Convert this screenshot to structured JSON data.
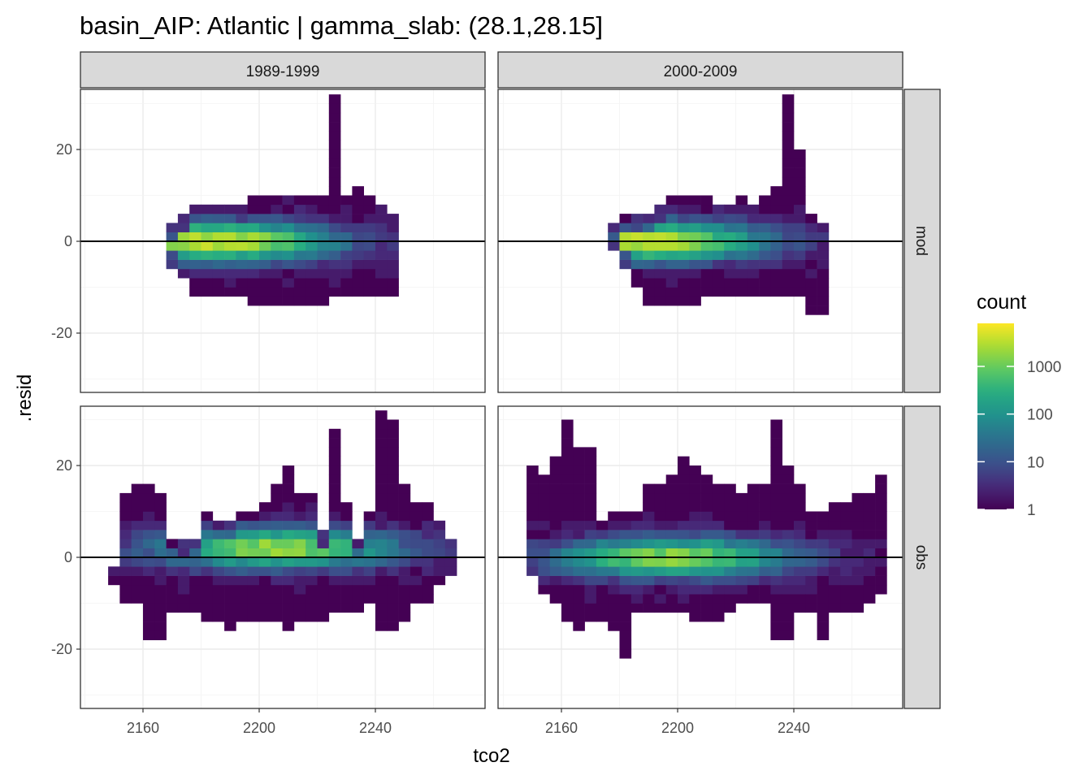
{
  "chart_data": {
    "type": "heatmap",
    "title": "basin_AIP: Atlantic | gamma_slab: (28.1,28.15]",
    "xlabel": "tco2",
    "ylabel": ".resid",
    "x_ticks": [
      2160,
      2200,
      2240
    ],
    "y_ticks": [
      -20,
      0,
      20
    ],
    "xlim": [
      2144,
      2270
    ],
    "ylim": [
      -32,
      32
    ],
    "bin_width_x": 4,
    "bin_height_y": 2,
    "reference_line_y": 0,
    "grid": true,
    "column_facets": [
      "1989-1999",
      "2000-2009"
    ],
    "row_facets": [
      "mod",
      "obs"
    ],
    "legend": {
      "title": "count",
      "position": "right",
      "scale": "log10",
      "ticks": [
        "1",
        "10",
        "100",
        "1000"
      ],
      "tick_values": [
        1,
        10,
        100,
        1000
      ],
      "max_count": 8000,
      "palette": [
        "#440154",
        "#3b528b",
        "#21908c",
        "#5dc863",
        "#fde725"
      ]
    },
    "panels": [
      {
        "column": "1989-1999",
        "row": "mod",
        "core_x_range": [
          2168,
          2248
        ],
        "columns_resid_range": [
          [
            2168,
            -6,
            4
          ],
          [
            2172,
            -8,
            6
          ],
          [
            2176,
            -12,
            8
          ],
          [
            2180,
            -12,
            8
          ],
          [
            2184,
            -12,
            8
          ],
          [
            2188,
            -12,
            8
          ],
          [
            2192,
            -12,
            8
          ],
          [
            2196,
            -14,
            10
          ],
          [
            2200,
            -14,
            10
          ],
          [
            2204,
            -14,
            10
          ],
          [
            2208,
            -14,
            10
          ],
          [
            2212,
            -14,
            10
          ],
          [
            2216,
            -14,
            10
          ],
          [
            2220,
            -14,
            10
          ],
          [
            2224,
            -12,
            32
          ],
          [
            2228,
            -12,
            10
          ],
          [
            2232,
            -12,
            12
          ],
          [
            2236,
            -12,
            10
          ],
          [
            2240,
            -12,
            8
          ],
          [
            2244,
            -12,
            6
          ]
        ],
        "peak": {
          "x": 2184,
          "resid": 0,
          "count": 5000
        }
      },
      {
        "column": "2000-2009",
        "row": "mod",
        "core_x_range": [
          2176,
          2248
        ],
        "columns_resid_range": [
          [
            2176,
            -2,
            4
          ],
          [
            2180,
            -6,
            6
          ],
          [
            2184,
            -10,
            6
          ],
          [
            2188,
            -14,
            6
          ],
          [
            2192,
            -14,
            8
          ],
          [
            2196,
            -14,
            10
          ],
          [
            2200,
            -14,
            10
          ],
          [
            2204,
            -14,
            10
          ],
          [
            2208,
            -12,
            10
          ],
          [
            2212,
            -12,
            8
          ],
          [
            2216,
            -12,
            8
          ],
          [
            2220,
            -12,
            10
          ],
          [
            2224,
            -12,
            8
          ],
          [
            2228,
            -12,
            10
          ],
          [
            2232,
            -12,
            12
          ],
          [
            2236,
            -12,
            32
          ],
          [
            2240,
            -12,
            20
          ],
          [
            2244,
            -16,
            6
          ],
          [
            2248,
            -16,
            4
          ]
        ],
        "peak": {
          "x": 2188,
          "resid": 0,
          "count": 4500
        }
      },
      {
        "column": "1989-1999",
        "row": "obs",
        "core_x_range": [
          2148,
          2268
        ],
        "columns_resid_range": [
          [
            2148,
            -6,
            -2
          ],
          [
            2152,
            -10,
            14
          ],
          [
            2156,
            -10,
            16
          ],
          [
            2160,
            -18,
            16
          ],
          [
            2164,
            -18,
            14
          ],
          [
            2168,
            -12,
            4
          ],
          [
            2172,
            -12,
            4
          ],
          [
            2176,
            -12,
            4
          ],
          [
            2180,
            -14,
            10
          ],
          [
            2184,
            -14,
            8
          ],
          [
            2188,
            -16,
            8
          ],
          [
            2192,
            -14,
            10
          ],
          [
            2196,
            -14,
            10
          ],
          [
            2200,
            -14,
            12
          ],
          [
            2204,
            -14,
            16
          ],
          [
            2208,
            -16,
            20
          ],
          [
            2212,
            -14,
            14
          ],
          [
            2216,
            -14,
            14
          ],
          [
            2220,
            -14,
            6
          ],
          [
            2224,
            -12,
            28
          ],
          [
            2228,
            -12,
            12
          ],
          [
            2232,
            -12,
            4
          ],
          [
            2236,
            -10,
            10
          ],
          [
            2240,
            -16,
            32
          ],
          [
            2244,
            -16,
            30
          ],
          [
            2248,
            -14,
            16
          ],
          [
            2252,
            -10,
            12
          ],
          [
            2256,
            -10,
            12
          ],
          [
            2260,
            -6,
            8
          ],
          [
            2264,
            -4,
            4
          ]
        ],
        "peak": {
          "x": 2204,
          "resid": 2,
          "count": 2500
        }
      },
      {
        "column": "2000-2009",
        "row": "obs",
        "core_x_range": [
          2144,
          2270
        ],
        "columns_resid_range": [
          [
            2148,
            -4,
            20
          ],
          [
            2152,
            -8,
            18
          ],
          [
            2156,
            -10,
            22
          ],
          [
            2160,
            -14,
            30
          ],
          [
            2164,
            -16,
            24
          ],
          [
            2168,
            -14,
            24
          ],
          [
            2172,
            -14,
            8
          ],
          [
            2176,
            -16,
            10
          ],
          [
            2180,
            -22,
            10
          ],
          [
            2184,
            -12,
            10
          ],
          [
            2188,
            -12,
            16
          ],
          [
            2192,
            -12,
            16
          ],
          [
            2196,
            -12,
            18
          ],
          [
            2200,
            -12,
            22
          ],
          [
            2204,
            -14,
            20
          ],
          [
            2208,
            -14,
            18
          ],
          [
            2212,
            -14,
            16
          ],
          [
            2216,
            -12,
            16
          ],
          [
            2220,
            -10,
            14
          ],
          [
            2224,
            -10,
            16
          ],
          [
            2228,
            -10,
            16
          ],
          [
            2232,
            -18,
            30
          ],
          [
            2236,
            -18,
            20
          ],
          [
            2240,
            -12,
            16
          ],
          [
            2244,
            -12,
            10
          ],
          [
            2248,
            -18,
            10
          ],
          [
            2252,
            -12,
            12
          ],
          [
            2256,
            -12,
            12
          ],
          [
            2260,
            -12,
            14
          ],
          [
            2264,
            -10,
            14
          ],
          [
            2268,
            -8,
            18
          ]
        ],
        "peak": {
          "x": 2196,
          "resid": 0,
          "count": 2000
        }
      }
    ]
  }
}
